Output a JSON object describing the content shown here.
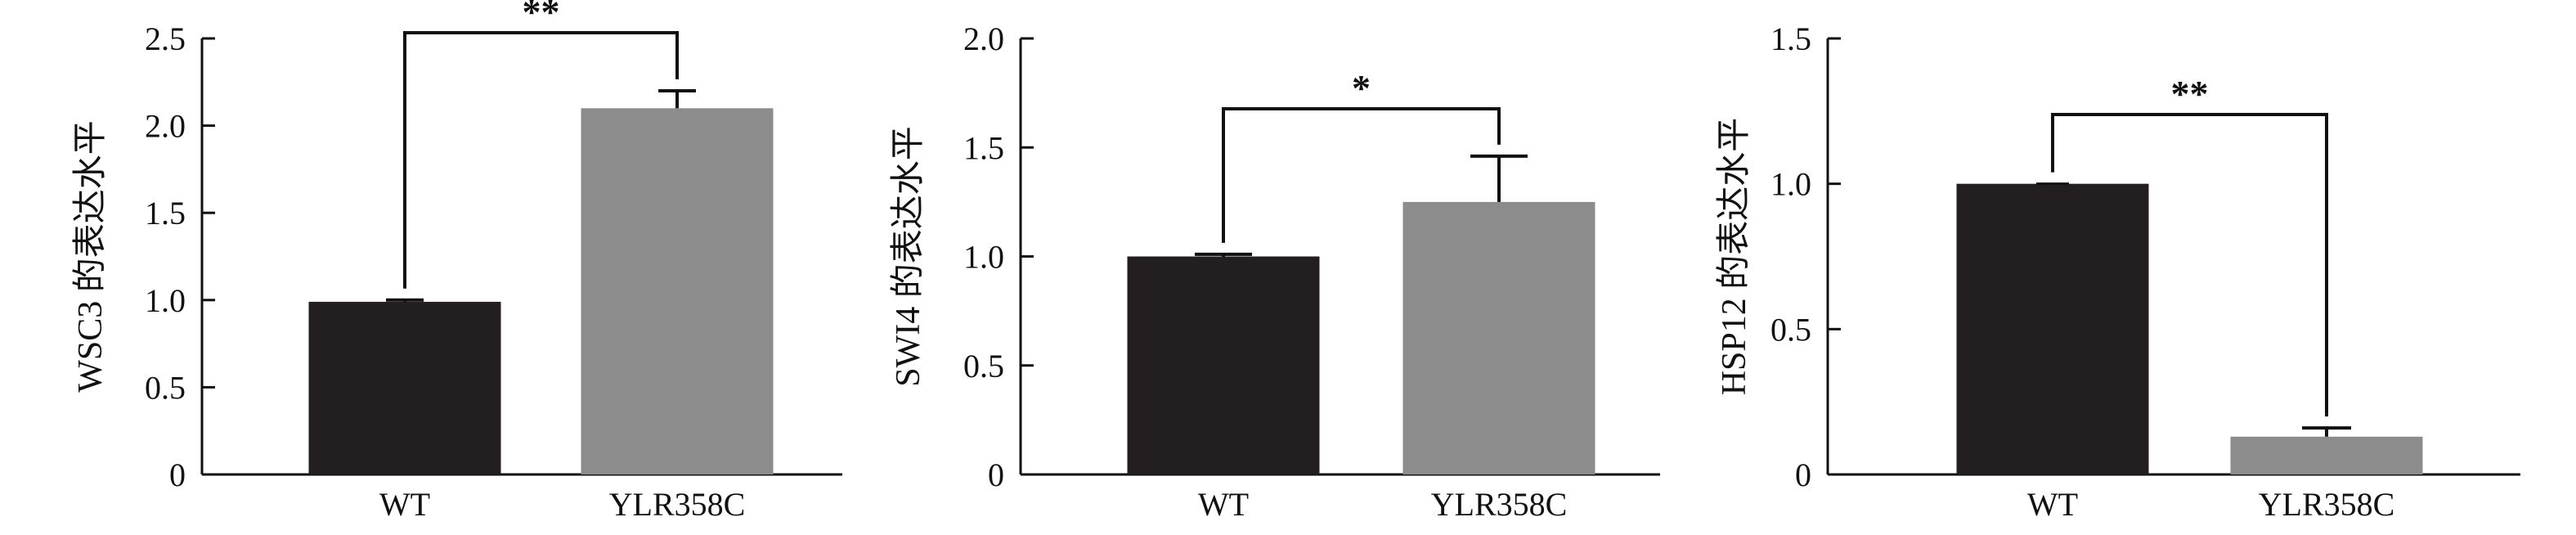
{
  "chart_data": [
    {
      "type": "bar",
      "categories": [
        "WT",
        "YLR358C"
      ],
      "values": [
        0.99,
        2.1
      ],
      "errors": [
        0.01,
        0.1
      ],
      "ylabel": "WSC3 的表达水平",
      "ylim": [
        0,
        2.5
      ],
      "yticks": [
        "0",
        "0.5",
        "1.0",
        "1.5",
        "2.0",
        "2.5"
      ],
      "significance": "**",
      "colors": [
        "#231f20",
        "#8c8c8c"
      ],
      "grid": false
    },
    {
      "type": "bar",
      "categories": [
        "WT",
        "YLR358C"
      ],
      "values": [
        1.0,
        1.25
      ],
      "errors": [
        0.01,
        0.21
      ],
      "ylabel": "SWI4 的表达水平",
      "ylim": [
        0,
        2.0
      ],
      "yticks": [
        "0",
        "0.5",
        "1.0",
        "1.5",
        "2.0"
      ],
      "significance": "*",
      "colors": [
        "#231f20",
        "#8c8c8c"
      ],
      "grid": false
    },
    {
      "type": "bar",
      "categories": [
        "WT",
        "YLR358C"
      ],
      "values": [
        1.0,
        0.13
      ],
      "errors": [
        0.0,
        0.03
      ],
      "ylabel": "HSP12 的表达水平",
      "ylim": [
        0,
        1.5
      ],
      "yticks": [
        "0",
        "0.5",
        "1.0",
        "1.5"
      ],
      "significance": "**",
      "colors": [
        "#231f20",
        "#8c8c8c"
      ],
      "grid": false
    }
  ]
}
